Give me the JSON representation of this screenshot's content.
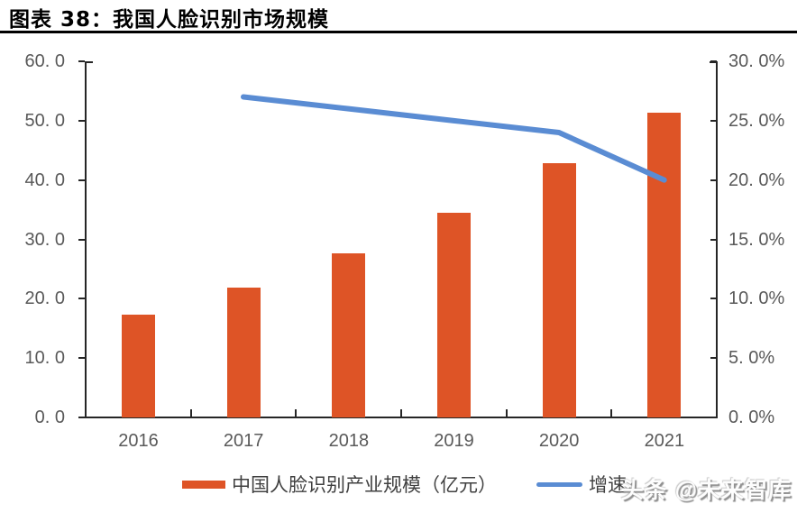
{
  "header": {
    "title": "图表 38：我国人脸识别市场规模",
    "watermark": "头条 @未来智库"
  },
  "chart_data": {
    "type": "bar",
    "subtype": "bar+line combo",
    "title": "我国人脸识别市场规模",
    "categories": [
      "2016",
      "2017",
      "2018",
      "2019",
      "2020",
      "2021"
    ],
    "series": [
      {
        "name": "中国人脸识别产业规模（亿元）",
        "type": "bar",
        "axis": "left",
        "color": "#DE5426",
        "values": [
          17.3,
          21.9,
          27.6,
          34.5,
          42.8,
          51.4
        ]
      },
      {
        "name": "增速",
        "type": "line",
        "axis": "right",
        "color": "#5A8CD3",
        "values": [
          null,
          27.0,
          26.0,
          25.0,
          24.0,
          20.0
        ]
      }
    ],
    "left_axis": {
      "min": 0,
      "max": 60,
      "step": 10,
      "tick_labels": [
        "0. 0",
        "10. 0",
        "20. 0",
        "30. 0",
        "40. 0",
        "50. 0",
        "60. 0"
      ]
    },
    "right_axis": {
      "min": 0,
      "max": 30,
      "step": 5,
      "tick_labels": [
        "0. 0%",
        "5. 0%",
        "10. 0%",
        "15. 0%",
        "20. 0%",
        "25. 0%",
        "30. 0%"
      ]
    },
    "grid": false,
    "legend_position": "bottom",
    "axis_label_color": "#595959"
  }
}
